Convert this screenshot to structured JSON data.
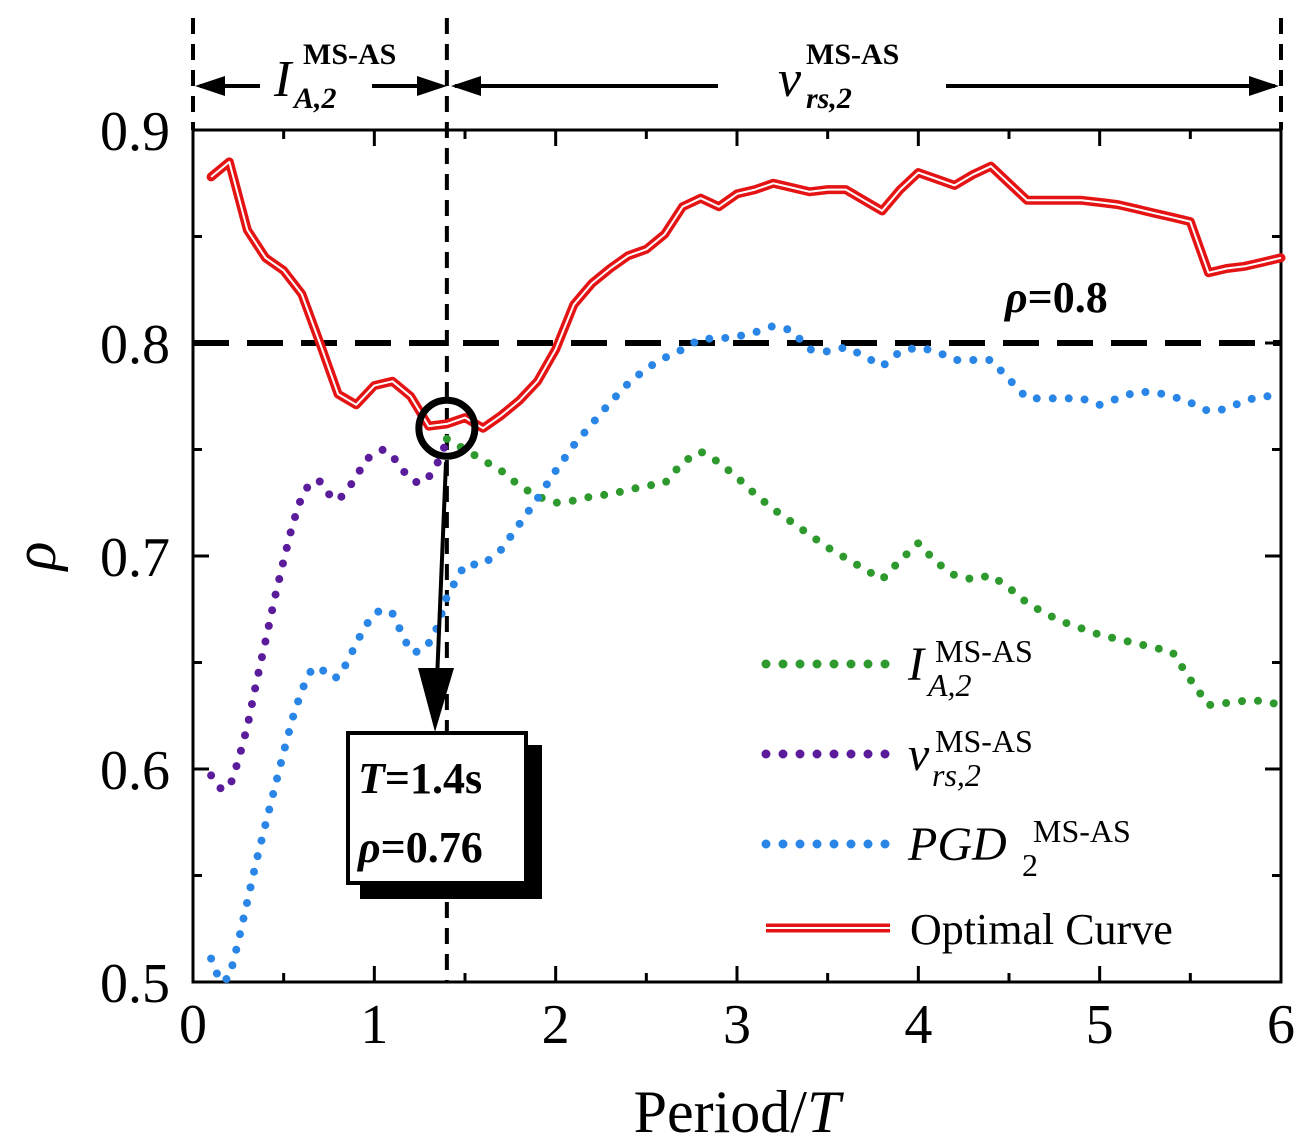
{
  "chart_data": {
    "type": "line",
    "xlabel": "Period/",
    "xlabel_italic": "T",
    "ylabel": "ρ",
    "xlim": [
      0,
      6
    ],
    "ylim": [
      0.5,
      0.9
    ],
    "x_ticks": [
      "0",
      "1",
      "2",
      "3",
      "4",
      "5",
      "6"
    ],
    "y_ticks": [
      "0.5",
      "0.6",
      "0.7",
      "0.8",
      "0.9"
    ],
    "y_tick_values": [
      0.5,
      0.6,
      0.7,
      0.8,
      0.9
    ],
    "colors": {
      "ia": "#2e9a2e",
      "vrs": "#5b1c9c",
      "pgd": "#2a86e6",
      "optimal": "#e51414",
      "threshold": "#000000"
    },
    "series": [
      {
        "key": "optimal",
        "name": "Optimal Curve",
        "x": [
          0.1,
          0.2,
          0.3,
          0.4,
          0.5,
          0.6,
          0.7,
          0.8,
          0.9,
          1.0,
          1.1,
          1.2,
          1.3,
          1.4,
          1.5,
          1.6,
          1.7,
          1.8,
          1.9,
          2.0,
          2.1,
          2.2,
          2.3,
          2.4,
          2.5,
          2.6,
          2.7,
          2.8,
          2.9,
          3.0,
          3.1,
          3.2,
          3.3,
          3.4,
          3.5,
          3.6,
          3.7,
          3.8,
          3.9,
          4.0,
          4.1,
          4.2,
          4.3,
          4.4,
          4.5,
          4.6,
          4.7,
          4.8,
          4.9,
          5.0,
          5.1,
          5.2,
          5.3,
          5.4,
          5.5,
          5.6,
          5.7,
          5.8,
          5.9,
          6.0
        ],
        "values": [
          0.878,
          0.885,
          0.853,
          0.84,
          0.834,
          0.823,
          0.8,
          0.776,
          0.771,
          0.78,
          0.782,
          0.775,
          0.761,
          0.762,
          0.765,
          0.76,
          0.766,
          0.773,
          0.782,
          0.797,
          0.818,
          0.828,
          0.835,
          0.841,
          0.844,
          0.851,
          0.864,
          0.868,
          0.864,
          0.87,
          0.872,
          0.875,
          0.873,
          0.871,
          0.872,
          0.872,
          0.867,
          0.862,
          0.872,
          0.88,
          0.877,
          0.874,
          0.879,
          0.883,
          0.875,
          0.867,
          0.867,
          0.867,
          0.867,
          0.866,
          0.865,
          0.863,
          0.861,
          0.859,
          0.857,
          0.833,
          0.835,
          0.836,
          0.838,
          0.84
        ]
      },
      {
        "key": "ia",
        "name": "I",
        "sub": "A,2",
        "sup": "MS-AS",
        "x": [
          1.4,
          1.5,
          1.6,
          1.7,
          1.8,
          1.9,
          2.0,
          2.1,
          2.2,
          2.3,
          2.4,
          2.5,
          2.6,
          2.7,
          2.8,
          2.9,
          3.0,
          3.1,
          3.2,
          3.3,
          3.4,
          3.5,
          3.6,
          3.7,
          3.8,
          3.9,
          4.0,
          4.1,
          4.2,
          4.3,
          4.4,
          4.5,
          4.6,
          4.7,
          4.8,
          4.9,
          5.0,
          5.1,
          5.2,
          5.3,
          5.4,
          5.5,
          5.6,
          5.7,
          5.8,
          5.9,
          6.0
        ],
        "values": [
          0.755,
          0.75,
          0.745,
          0.74,
          0.733,
          0.728,
          0.725,
          0.726,
          0.728,
          0.729,
          0.731,
          0.733,
          0.734,
          0.744,
          0.749,
          0.744,
          0.737,
          0.729,
          0.722,
          0.716,
          0.71,
          0.704,
          0.699,
          0.694,
          0.689,
          0.698,
          0.706,
          0.697,
          0.691,
          0.689,
          0.691,
          0.685,
          0.678,
          0.673,
          0.669,
          0.666,
          0.663,
          0.661,
          0.659,
          0.657,
          0.655,
          0.642,
          0.63,
          0.631,
          0.632,
          0.632,
          0.63
        ]
      },
      {
        "key": "vrs",
        "name": "v",
        "sub": "rs,2",
        "sup": "MS-AS",
        "x": [
          0.1,
          0.15,
          0.2,
          0.25,
          0.3,
          0.35,
          0.4,
          0.45,
          0.5,
          0.55,
          0.6,
          0.65,
          0.7,
          0.75,
          0.8,
          0.85,
          0.9,
          0.95,
          1.0,
          1.05,
          1.1,
          1.15,
          1.2,
          1.25,
          1.3,
          1.35,
          1.4
        ],
        "values": [
          0.597,
          0.591,
          0.591,
          0.604,
          0.62,
          0.641,
          0.66,
          0.68,
          0.698,
          0.715,
          0.728,
          0.735,
          0.735,
          0.729,
          0.726,
          0.731,
          0.737,
          0.745,
          0.748,
          0.75,
          0.747,
          0.741,
          0.736,
          0.734,
          0.737,
          0.744,
          0.754
        ]
      },
      {
        "key": "pgd",
        "name": "PGD",
        "sub": "2",
        "sup": "MS-AS",
        "x": [
          0.1,
          0.15,
          0.2,
          0.25,
          0.3,
          0.35,
          0.4,
          0.45,
          0.5,
          0.55,
          0.6,
          0.65,
          0.7,
          0.75,
          0.8,
          0.85,
          0.9,
          0.95,
          1.0,
          1.05,
          1.1,
          1.15,
          1.2,
          1.25,
          1.3,
          1.35,
          1.4,
          1.5,
          1.6,
          1.7,
          1.8,
          1.9,
          2.0,
          2.1,
          2.2,
          2.3,
          2.4,
          2.5,
          2.6,
          2.7,
          2.8,
          2.9,
          3.0,
          3.1,
          3.2,
          3.3,
          3.4,
          3.5,
          3.6,
          3.7,
          3.8,
          3.9,
          4.0,
          4.1,
          4.2,
          4.3,
          4.4,
          4.5,
          4.6,
          4.7,
          4.8,
          4.9,
          5.0,
          5.1,
          5.2,
          5.3,
          5.4,
          5.5,
          5.6,
          5.7,
          5.8,
          5.9,
          6.0
        ],
        "values": [
          0.511,
          0.5,
          0.502,
          0.519,
          0.538,
          0.557,
          0.574,
          0.591,
          0.608,
          0.624,
          0.637,
          0.646,
          0.648,
          0.643,
          0.643,
          0.65,
          0.659,
          0.667,
          0.673,
          0.675,
          0.673,
          0.664,
          0.655,
          0.655,
          0.659,
          0.667,
          0.681,
          0.696,
          0.696,
          0.703,
          0.715,
          0.727,
          0.74,
          0.752,
          0.762,
          0.772,
          0.781,
          0.788,
          0.793,
          0.797,
          0.802,
          0.802,
          0.803,
          0.805,
          0.808,
          0.806,
          0.797,
          0.796,
          0.798,
          0.794,
          0.789,
          0.796,
          0.798,
          0.796,
          0.792,
          0.792,
          0.792,
          0.783,
          0.774,
          0.774,
          0.774,
          0.774,
          0.771,
          0.774,
          0.777,
          0.777,
          0.775,
          0.772,
          0.768,
          0.769,
          0.773,
          0.775,
          0.775
        ]
      }
    ],
    "threshold": {
      "value": 0.8,
      "label_var": "ρ",
      "label_value": "=0.8"
    },
    "range_markers": [
      {
        "name": "I",
        "sub": "A,2",
        "sup": "MS-AS",
        "from": 0,
        "to": 1.4
      },
      {
        "name": "v",
        "sub": "rs,2",
        "sup": "MS-AS",
        "from": 1.4,
        "to": 6
      }
    ],
    "annotation": {
      "x": 1.4,
      "y": 0.76,
      "line1_var": "T",
      "line1_rest": "=1.4s",
      "line2_var": "ρ",
      "line2_rest": "=0.76"
    },
    "legend_position": "bottom-right"
  }
}
